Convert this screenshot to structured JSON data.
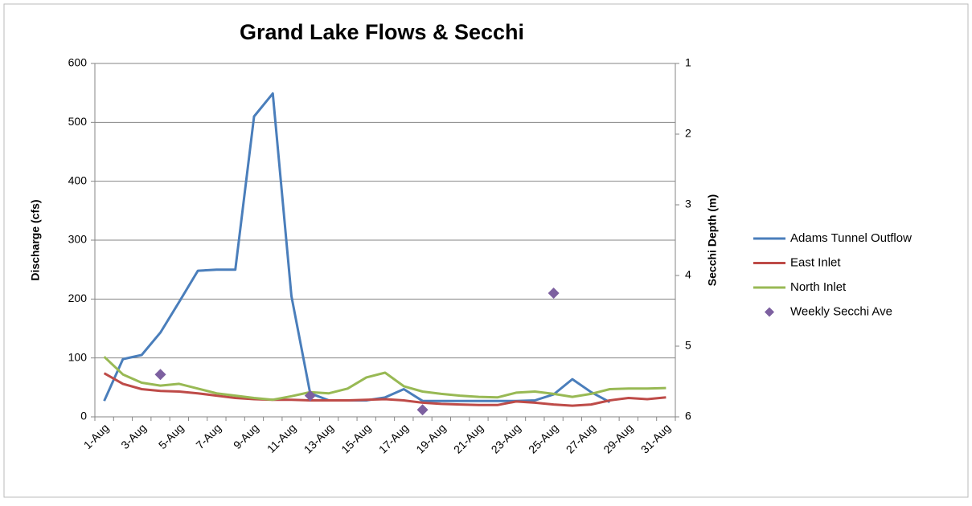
{
  "chart_data": {
    "type": "line",
    "title": "Grand Lake Flows & Secchi",
    "ylabel": "Discharge (cfs)",
    "y2label": "Secchi Depth (m)",
    "categories": [
      "1-Aug",
      null,
      "3-Aug",
      null,
      "5-Aug",
      null,
      "7-Aug",
      null,
      "9-Aug",
      null,
      "11-Aug",
      null,
      "13-Aug",
      null,
      "15-Aug",
      null,
      "17-Aug",
      null,
      "19-Aug",
      null,
      "21-Aug",
      null,
      "23-Aug",
      null,
      "25-Aug",
      null,
      "27-Aug",
      null,
      "29-Aug",
      null,
      "31-Aug"
    ],
    "ylim": [
      0,
      600
    ],
    "yticks": [
      0,
      100,
      200,
      300,
      400,
      500,
      600
    ],
    "y2lim": [
      6,
      1
    ],
    "y2ticks": [
      1,
      2,
      3,
      4,
      5,
      6
    ],
    "grid": true,
    "legend": "right",
    "series": [
      {
        "name": "Adams Tunnel Outflow",
        "color": "#4a7ebb",
        "values": [
          27,
          98,
          105,
          143,
          195,
          248,
          250,
          250,
          510,
          549,
          205,
          40,
          28,
          28,
          28,
          33,
          47,
          27,
          27,
          27,
          27,
          27,
          27,
          28,
          38,
          64,
          42,
          25,
          null,
          null,
          null
        ]
      },
      {
        "name": "East Inlet",
        "color": "#be4b48",
        "values": [
          74,
          56,
          47,
          44,
          43,
          40,
          36,
          32,
          30,
          29,
          29,
          28,
          28,
          28,
          29,
          30,
          28,
          24,
          22,
          21,
          20,
          20,
          26,
          24,
          21,
          19,
          21,
          28,
          32,
          30,
          33
        ]
      },
      {
        "name": "North Inlet",
        "color": "#98b954",
        "values": [
          102,
          72,
          58,
          53,
          56,
          48,
          40,
          36,
          32,
          29,
          35,
          42,
          40,
          48,
          67,
          75,
          52,
          43,
          39,
          36,
          34,
          33,
          41,
          43,
          39,
          34,
          39,
          47,
          48,
          48,
          49
        ]
      },
      {
        "name": "Weekly Secchi Ave",
        "color": "#7d60a0",
        "type": "scatter",
        "axis": "y2",
        "values": [
          null,
          null,
          null,
          5.4,
          null,
          null,
          null,
          null,
          null,
          null,
          null,
          5.7,
          null,
          null,
          null,
          null,
          null,
          5.9,
          null,
          null,
          null,
          null,
          null,
          null,
          4.25,
          null,
          null,
          null,
          null,
          null,
          null
        ]
      }
    ]
  }
}
